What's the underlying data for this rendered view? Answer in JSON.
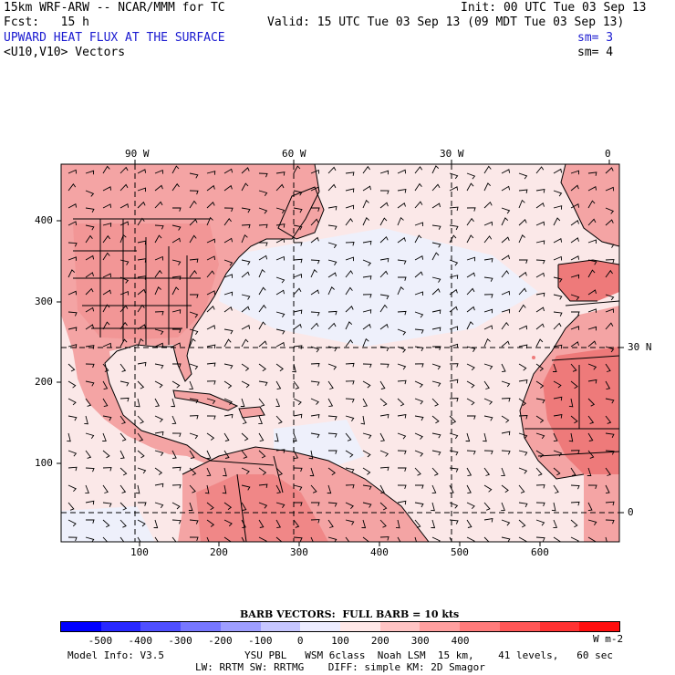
{
  "header": {
    "model_title": "15km WRF-ARW -- NCAR/MMM for TC",
    "init": "Init: 00 UTC Tue 03 Sep 13",
    "fcst": "Fcst:   15 h",
    "valid": "Valid: 15 UTC Tue 03 Sep 13 (09 MDT Tue 03 Sep 13)",
    "field_name": "UPWARD HEAT FLUX AT THE SURFACE",
    "field_sm": "sm= 3",
    "vector_name": "<U10,V10> Vectors",
    "vector_sm": "sm= 4"
  },
  "map": {
    "lon_labels": [
      "90 W",
      "60 W",
      "30 W",
      "0"
    ],
    "lat_labels": [
      "30 N",
      "0"
    ],
    "x_ticks": [
      "100",
      "200",
      "300",
      "400",
      "500",
      "600"
    ],
    "y_ticks": [
      "100",
      "200",
      "300",
      "400"
    ],
    "land_color": "#f4a4a4",
    "land_dark_color": "#ee7a7a",
    "ocean_color": "#fbe8e8",
    "ocean_cool_color": "#eef0fb"
  },
  "legend": {
    "title": "BARB VECTORS:  FULL BARB = 10 kts",
    "ticks": [
      "-500",
      "-400",
      "-300",
      "-200",
      "-100",
      "0",
      "100",
      "200",
      "300",
      "400"
    ],
    "unit": "W m-2",
    "colors": [
      "#0000ff",
      "#2828ff",
      "#4f4fff",
      "#7777ff",
      "#9e9eff",
      "#c6c6ff",
      "#ececff",
      "#ffe8e8",
      "#ffc4c4",
      "#ff9f9f",
      "#ff7b7b",
      "#ff5656",
      "#ff3232",
      "#ff0e0e"
    ]
  },
  "footer": {
    "model_info": "Model Info: V3.5",
    "line1": "YSU PBL   WSM 6class  Noah LSM  15 km,    41 levels,   60 sec",
    "line2": "LW: RRTM SW: RRTMG    DIFF: simple KM: 2D Smagor"
  }
}
